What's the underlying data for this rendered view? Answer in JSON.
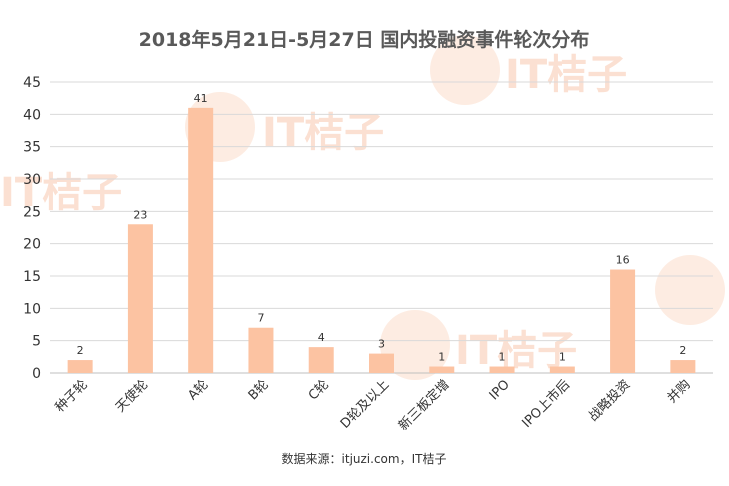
{
  "title": "2018年5月21日-5月27日  国内投融资事件轮次分布",
  "source": "数据来源：itjuzi.com，IT桔子",
  "watermark": "IT桔子",
  "colors": {
    "bar": "#fcc3a2",
    "grid": "#d9d9d9",
    "text": "#333333",
    "title": "#595959"
  },
  "chart_data": {
    "type": "bar",
    "title": "2018年5月21日-5月27日  国内投融资事件轮次分布",
    "xlabel": "",
    "ylabel": "",
    "ylim": [
      0,
      45
    ],
    "yticks": [
      0,
      5,
      10,
      15,
      20,
      25,
      30,
      35,
      40,
      45
    ],
    "grid": true,
    "categories": [
      "种子轮",
      "天使轮",
      "A轮",
      "B轮",
      "C轮",
      "D轮及以上",
      "新三板定增",
      "IPO",
      "IPO上市后",
      "战略投资",
      "并购"
    ],
    "values": [
      2,
      23,
      41,
      7,
      4,
      3,
      1,
      1,
      1,
      16,
      2
    ]
  }
}
